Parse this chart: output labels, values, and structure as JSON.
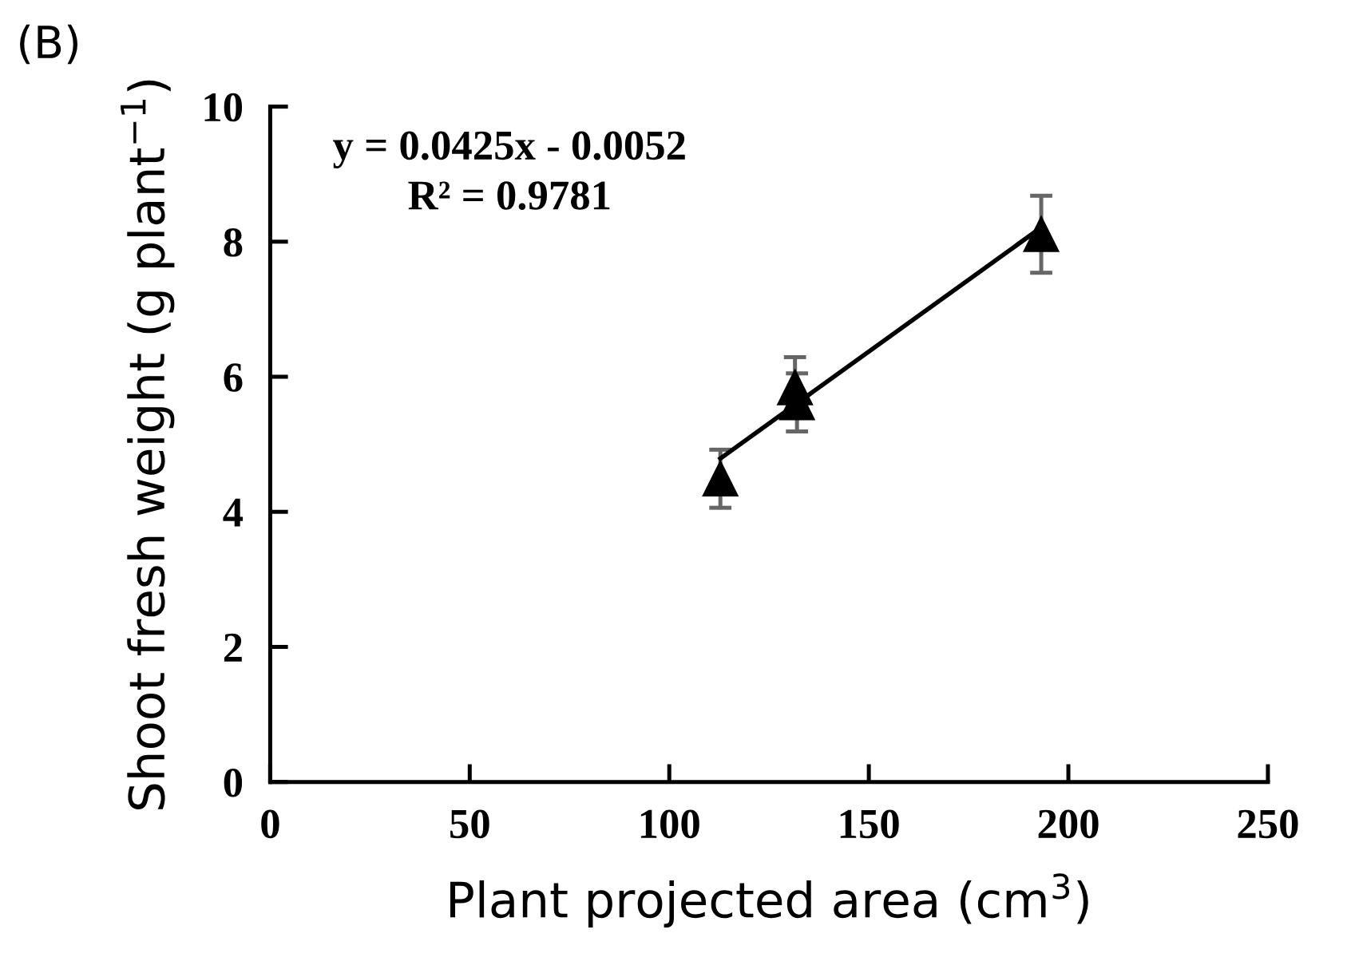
{
  "chart_data": {
    "type": "scatter",
    "xlabel": "Plant projected area (cm$^{3}$)",
    "ylabel": "Shoot fresh weight (g plant$^{−1}$)",
    "annotations": [
      "(B)",
      "y = 0.0425x - 0.0052\nR² = 0.9781"
    ],
    "xlim": [
      0,
      250
    ],
    "xticks": [
      0,
      50,
      100,
      150,
      200,
      250
    ],
    "ylim": [
      0,
      10
    ],
    "yticks": [
      0,
      2,
      4,
      6,
      8,
      10
    ],
    "grid": false,
    "legend": false,
    "series": [
      {
        "marker": "triangle",
        "color": "#000000",
        "x": [
          112.8,
          131.5,
          132.0,
          193.2
        ],
        "values": [
          4.49,
          5.84,
          5.62,
          8.11
        ],
        "errors": [
          0.43,
          0.45,
          0.43,
          0.57
        ]
      },
      {
        "type": "line",
        "color": "#000000",
        "x": [
          112.8,
          193.2
        ],
        "values": [
          4.79,
          8.21
        ],
        "line_style": "solid"
      }
    ]
  }
}
